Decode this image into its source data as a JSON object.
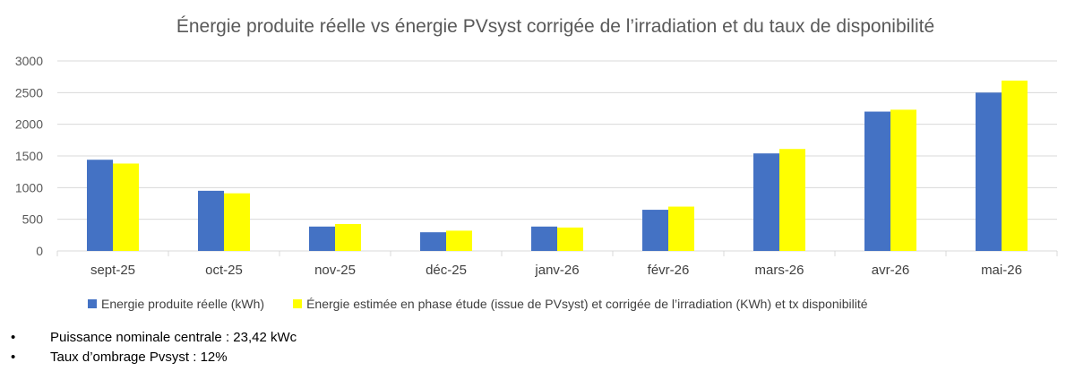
{
  "chart_data": {
    "type": "bar",
    "title": "Énergie produite réelle vs énergie PVsyst corrigée de l’irradiation et du taux de disponibilité",
    "xlabel": "",
    "ylabel": "",
    "ylim": [
      0,
      3000
    ],
    "yticks": [
      "0",
      "500",
      "1000",
      "1500",
      "2000",
      "2500",
      "3000"
    ],
    "grid": true,
    "legend_position": "bottom",
    "categories": [
      "sept-25",
      "oct-25",
      "nov-25",
      "déc-25",
      "janv-26",
      "févr-26",
      "mars-26",
      "avr-26",
      "mai-26"
    ],
    "series": [
      {
        "name": "Energie produite réelle (kWh)",
        "color": "#4472C4",
        "values": [
          1440,
          950,
          385,
          295,
          385,
          650,
          1540,
          2200,
          2500
        ]
      },
      {
        "name": "Énergie estimée en phase étude (issue de PVsyst) et corrigée de l’irradiation (KWh) et tx disponibilité",
        "color": "#FFFF00",
        "values": [
          1380,
          910,
          425,
          320,
          370,
          700,
          1610,
          2230,
          2690
        ]
      }
    ]
  },
  "notes": [
    {
      "bullet": "•",
      "text": "Puissance nominale centrale : 23,42 kWc"
    },
    {
      "bullet": "•",
      "text": "Taux d’ombrage Pvsyst : 12%"
    }
  ]
}
